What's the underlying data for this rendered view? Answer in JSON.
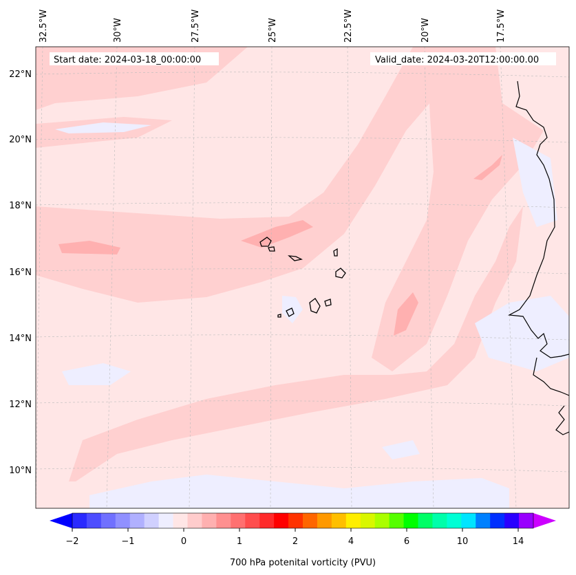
{
  "map": {
    "start_label": "Start date: 2024-03-18_00:00:00",
    "valid_label": "Valid_date: 2024-03-20T12:00:00.00",
    "lon_labels": [
      "32.5°W",
      "30°W",
      "27.5°W",
      "25°W",
      "22.5°W",
      "20°W",
      "17.5°W"
    ],
    "lat_labels": [
      "22°N",
      "20°N",
      "18°N",
      "16°N",
      "14°N",
      "12°N",
      "10°N"
    ],
    "colors": {
      "background": "#ffe6e6",
      "light_pink": "#ffd0d0",
      "medium_pink": "#ffb0b0",
      "light_blue": "#eeeeff",
      "coast": "#000000",
      "grid": "#bbbbbb"
    }
  },
  "colorbar": {
    "label": "700 hPa potenital vorticity (PVU)",
    "ticks": [
      "−2",
      "−1",
      "0",
      "1",
      "2",
      "4",
      "6",
      "10",
      "14"
    ],
    "colors": [
      "#0000ff",
      "#2a2aff",
      "#4d4dff",
      "#7070ff",
      "#9090ff",
      "#b0b0ff",
      "#d0d0ff",
      "#eeeeff",
      "#ffe6e6",
      "#ffcccc",
      "#ffb0b0",
      "#ff9090",
      "#ff7070",
      "#ff4d4d",
      "#ff2a2a",
      "#ff0000",
      "#ff3300",
      "#ff6600",
      "#ff9900",
      "#ffbf00",
      "#ffee00",
      "#d9f700",
      "#aaff00",
      "#55ff00",
      "#00ff00",
      "#00ff66",
      "#00ffaa",
      "#00ffd5",
      "#00e5ff",
      "#0080ff",
      "#0030ff",
      "#2a00ff",
      "#9900ff",
      "#cc00ff"
    ]
  }
}
